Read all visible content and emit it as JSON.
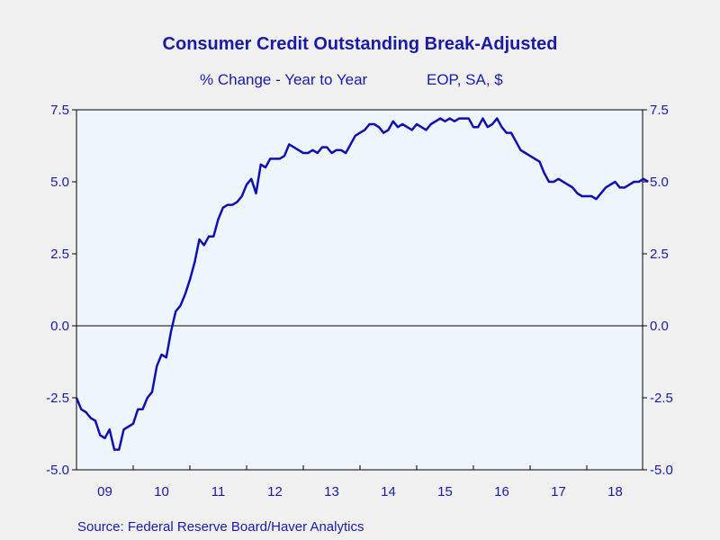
{
  "chart_data": {
    "type": "line",
    "title": "Consumer Credit Outstanding Break-Adjusted",
    "subtitle_left": "% Change - Year to Year",
    "subtitle_right": "EOP, SA, $",
    "source": "Source:  Federal Reserve Board/Haver Analytics",
    "ylim": [
      -5.0,
      7.5
    ],
    "y_ticks": [
      "-5.0",
      "-2.5",
      "0.0",
      "2.5",
      "5.0",
      "7.5"
    ],
    "x_tick_labels": [
      "09",
      "10",
      "11",
      "12",
      "13",
      "14",
      "15",
      "16",
      "17",
      "18"
    ],
    "x_start": "2009-01",
    "grid": false,
    "zero_line": true,
    "colors": {
      "line": "#1010b0",
      "plot_bg": "#eef5fc",
      "text": "#1a1aa8",
      "axis": "#000000"
    },
    "series": [
      {
        "values": [
          -2.5,
          -2.9,
          -3.0,
          -3.2,
          -3.3,
          -3.8,
          -3.9,
          -3.6,
          -4.3,
          -4.3,
          -3.6,
          -3.5,
          -3.4,
          -2.9,
          -2.9,
          -2.5,
          -2.3,
          -1.4,
          -1.0,
          -1.1,
          -0.2,
          0.5,
          0.7,
          1.1,
          1.6,
          2.2,
          3.0,
          2.8,
          3.1,
          3.1,
          3.7,
          4.1,
          4.2,
          4.2,
          4.3,
          4.5,
          4.9,
          5.1,
          4.6,
          5.6,
          5.5,
          5.8,
          5.8,
          5.8,
          5.9,
          6.3,
          6.2,
          6.1,
          6.0,
          6.0,
          6.1,
          6.0,
          6.2,
          6.2,
          6.0,
          6.1,
          6.1,
          6.0,
          6.3,
          6.6,
          6.7,
          6.8,
          7.0,
          7.0,
          6.9,
          6.7,
          6.8,
          7.1,
          6.9,
          7.0,
          6.9,
          6.8,
          7.0,
          6.9,
          6.8,
          7.0,
          7.1,
          7.2,
          7.1,
          7.2,
          7.1,
          7.2,
          7.2,
          7.2,
          6.9,
          6.9,
          7.2,
          6.9,
          7.0,
          7.2,
          6.9,
          6.7,
          6.7,
          6.4,
          6.1,
          6.0,
          5.9,
          5.8,
          5.7,
          5.3,
          5.0,
          5.0,
          5.1,
          5.0,
          4.9,
          4.8,
          4.6,
          4.5,
          4.5,
          4.5,
          4.4,
          4.6,
          4.8,
          4.9,
          5.0,
          4.8,
          4.8,
          4.9,
          5.0,
          5.0,
          5.1,
          5.0
        ]
      }
    ]
  }
}
